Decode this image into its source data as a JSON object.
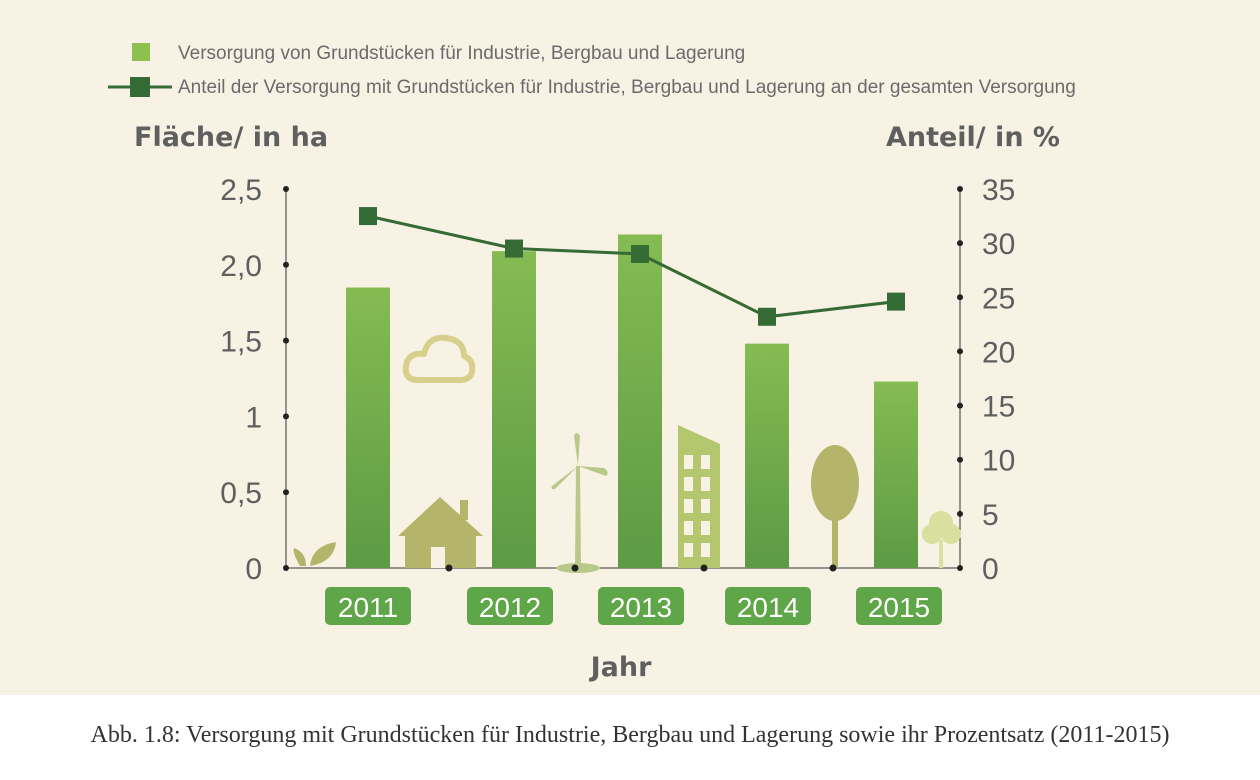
{
  "chart_data": {
    "type": "bar",
    "categories": [
      "2011",
      "2012",
      "2013",
      "2014",
      "2015"
    ],
    "series": [
      {
        "name": "Versorgung von Grundstücken für Industrie, Bergbau und Lagerung",
        "type": "bar",
        "axis": "left",
        "values": [
          1.85,
          2.09,
          2.2,
          1.48,
          1.23
        ]
      },
      {
        "name": "Anteil der Versorgung mit Grundstücken für  Industrie, Bergbau und Lagerung an der gesamten Versorgung",
        "type": "line",
        "axis": "right",
        "values": [
          32.5,
          29.5,
          29.0,
          23.2,
          24.6
        ]
      }
    ],
    "ylabel_left": "Fläche/ in ha",
    "ylabel_right": "Anteil/ in %",
    "xlabel": "Jahr",
    "ylim_left": [
      0,
      2.5
    ],
    "ylim_right": [
      0,
      35
    ],
    "yticks_left": [
      "0",
      "0,5",
      "1",
      "1,5",
      "2,0",
      "2,5"
    ],
    "yticks_left_values": [
      0,
      0.5,
      1,
      1.5,
      2.0,
      2.5
    ],
    "yticks_right": [
      "0",
      "5",
      "10",
      "15",
      "20",
      "25",
      "30",
      "35"
    ],
    "yticks_right_values": [
      0,
      5,
      10,
      15,
      20,
      25,
      30,
      35
    ],
    "grid": false,
    "legend_position": "top"
  },
  "colors": {
    "bar": "#7ab24e",
    "line": "#356b35",
    "badge": "#5fa648",
    "background": "#f8f2e4",
    "decoration": "#b4b46a"
  },
  "caption": "Abb. 1.8: Versorgung mit Grundstücken für  Industrie, Bergbau und Lagerung sowie ihr Prozentsatz (2011-2015)"
}
